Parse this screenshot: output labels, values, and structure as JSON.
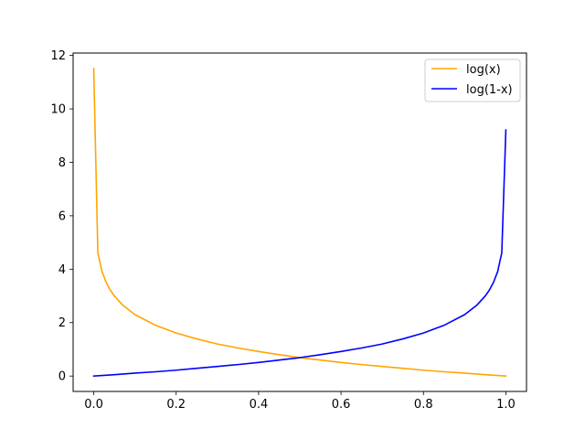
{
  "chart_data": {
    "type": "line",
    "title": "",
    "xlabel": "",
    "ylabel": "",
    "xlim": [
      -0.05,
      1.05
    ],
    "ylim": [
      -0.576,
      12.09
    ],
    "xticks": [
      "0.0",
      "0.2",
      "0.4",
      "0.6",
      "0.8",
      "1.0"
    ],
    "yticks": [
      "0",
      "2",
      "4",
      "6",
      "8",
      "10",
      "12"
    ],
    "grid": false,
    "legend_position": "top-right",
    "series": [
      {
        "name": "log(x)",
        "color": "#FFA500",
        "points": [
          [
            1e-05,
            11.51
          ],
          [
            0.01,
            4.61
          ],
          [
            0.02,
            3.91
          ],
          [
            0.03,
            3.51
          ],
          [
            0.04,
            3.22
          ],
          [
            0.05,
            3.0
          ],
          [
            0.07,
            2.66
          ],
          [
            0.1,
            2.3
          ],
          [
            0.15,
            1.9
          ],
          [
            0.2,
            1.61
          ],
          [
            0.25,
            1.39
          ],
          [
            0.3,
            1.2
          ],
          [
            0.35,
            1.05
          ],
          [
            0.4,
            0.92
          ],
          [
            0.45,
            0.8
          ],
          [
            0.5,
            0.69
          ],
          [
            0.55,
            0.6
          ],
          [
            0.6,
            0.51
          ],
          [
            0.65,
            0.43
          ],
          [
            0.7,
            0.36
          ],
          [
            0.75,
            0.29
          ],
          [
            0.8,
            0.22
          ],
          [
            0.85,
            0.16
          ],
          [
            0.9,
            0.11
          ],
          [
            0.95,
            0.05
          ],
          [
            0.99999,
            0.0
          ]
        ]
      },
      {
        "name": "log(1-x)",
        "color": "#0000FF",
        "points": [
          [
            0.0,
            0.0
          ],
          [
            0.05,
            0.05
          ],
          [
            0.1,
            0.11
          ],
          [
            0.15,
            0.16
          ],
          [
            0.2,
            0.22
          ],
          [
            0.25,
            0.29
          ],
          [
            0.3,
            0.36
          ],
          [
            0.35,
            0.43
          ],
          [
            0.4,
            0.51
          ],
          [
            0.45,
            0.6
          ],
          [
            0.5,
            0.69
          ],
          [
            0.55,
            0.8
          ],
          [
            0.6,
            0.92
          ],
          [
            0.65,
            1.05
          ],
          [
            0.7,
            1.2
          ],
          [
            0.75,
            1.39
          ],
          [
            0.8,
            1.61
          ],
          [
            0.85,
            1.9
          ],
          [
            0.9,
            2.3
          ],
          [
            0.93,
            2.66
          ],
          [
            0.95,
            3.0
          ],
          [
            0.96,
            3.22
          ],
          [
            0.97,
            3.51
          ],
          [
            0.98,
            3.91
          ],
          [
            0.99,
            4.61
          ],
          [
            0.9999,
            9.21
          ]
        ]
      }
    ]
  }
}
